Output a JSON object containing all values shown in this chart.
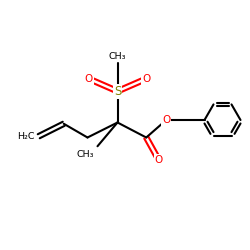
{
  "bg_color": "#ffffff",
  "bond_color": "#000000",
  "bond_lw": 1.5,
  "atom_colors": {
    "O": "#ff0000",
    "S": "#808000",
    "C": "#000000",
    "H": "#000000"
  },
  "figsize": [
    2.5,
    2.5
  ],
  "dpi": 100,
  "xlim": [
    0,
    10
  ],
  "ylim": [
    0,
    10
  ]
}
